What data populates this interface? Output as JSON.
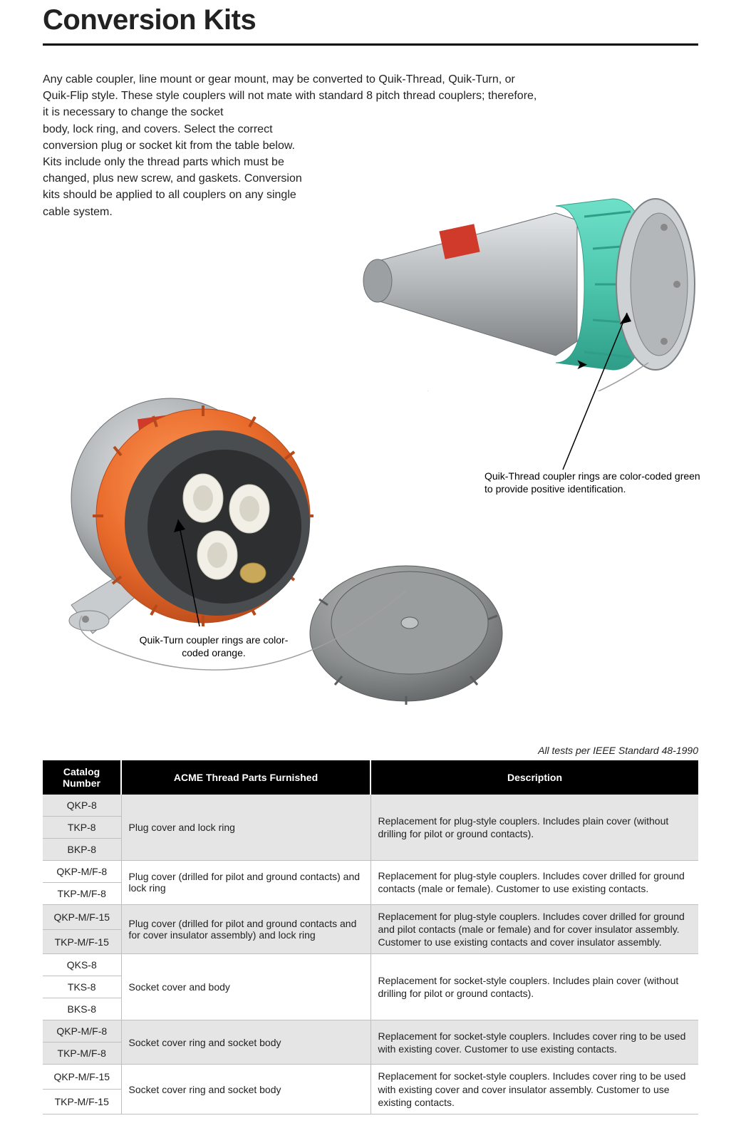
{
  "title": "Conversion Kits",
  "intro_line1": "Any cable coupler, line mount or gear mount, may be converted to Quik-Thread, Quik-Turn, or Quik-Flip style.  These style couplers will not mate with standard 8 pitch thread couplers; therefore, it is necessary to change the socket",
  "intro_line2": "body, lock ring, and covers. Select the correct conversion plug or socket kit from the table below.  Kits include only the thread parts which must be changed, plus new screw, and gaskets.  Conversion kits should be applied to all couplers on any single cable system.",
  "caption_green": "Quik-Thread coupler rings are color-coded green to provide positive identification.",
  "caption_orange": "Quik-Turn coupler rings are color-coded orange.",
  "test_note": "All tests per IEEE Standard 48-1990",
  "colors": {
    "green_ring": "#4cc6ad",
    "orange_ring": "#e86a2a",
    "metal_light": "#cfd2d4",
    "metal_mid": "#aeb2b5",
    "metal_dark": "#7d8184",
    "cap_gray": "#7c7f7f",
    "red_label": "#cf3a2b",
    "header_bg": "#000000",
    "header_fg": "#ffffff",
    "row_shade": "#e5e5e5",
    "rule": "#bfbfbf",
    "group_rule": "#8a8a8a"
  },
  "table": {
    "headers": [
      "Catalog Number",
      "ACME Thread Parts Furnished",
      "Description"
    ],
    "groups": [
      {
        "catalogs": [
          "QKP-8",
          "TKP-8",
          "BKP-8"
        ],
        "shaded": true,
        "parts": "Plug cover and lock ring",
        "desc": "Replacement for plug-style couplers. Includes plain cover (without drilling for pilot or ground contacts)."
      },
      {
        "catalogs": [
          "QKP-M/F-8",
          "TKP-M/F-8"
        ],
        "shaded": false,
        "parts": "Plug cover (drilled for pilot and ground contacts) and lock ring",
        "desc": "Replacement for plug-style couplers. Includes cover drilled for ground contacts (male or female). Customer to use existing contacts."
      },
      {
        "catalogs": [
          "QKP-M/F-15",
          "TKP-M/F-15"
        ],
        "shaded": true,
        "parts": "Plug cover (drilled for pilot and ground contacts and for cover insulator assembly) and lock ring",
        "desc": "Replacement for plug-style couplers. Includes cover drilled for ground and pilot contacts (male or female) and for cover insulator assembly. Customer to use existing contacts and cover insulator assembly."
      },
      {
        "catalogs": [
          "QKS-8",
          "TKS-8",
          "BKS-8"
        ],
        "shaded": false,
        "parts": "Socket cover and body",
        "desc": "Replacement for socket-style couplers.  Includes plain cover (without drilling for pilot or ground contacts)."
      },
      {
        "catalogs": [
          "QKP-M/F-8",
          "TKP-M/F-8"
        ],
        "shaded": true,
        "parts": "Socket cover ring and socket body",
        "desc": "Replacement for socket-style couplers.  Includes cover ring to be used with existing cover.  Customer to use existing contacts."
      },
      {
        "catalogs": [
          "QKP-M/F-15",
          "TKP-M/F-15"
        ],
        "shaded": false,
        "parts": "Socket cover ring and socket body",
        "desc": "Replacement for socket-style couplers.  Includes cover ring to be used with existing cover and cover insulator assembly.  Customer to use existing contacts."
      }
    ]
  }
}
